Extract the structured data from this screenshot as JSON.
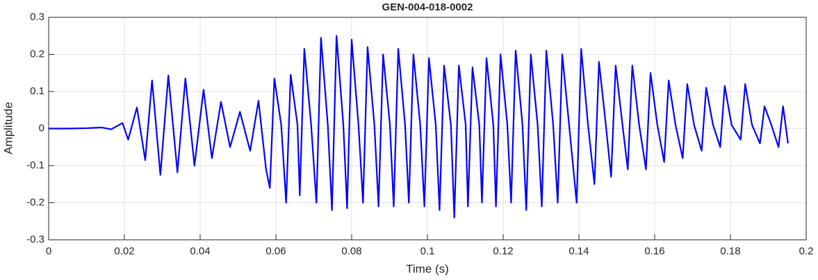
{
  "chart_data": {
    "type": "line",
    "title": "GEN-004-018-0002",
    "xlabel": "Time (s)",
    "ylabel": "Amplitude",
    "color": "#0000ff",
    "grid": true,
    "xlim": [
      0,
      0.2
    ],
    "xticks": [
      0,
      0.02,
      0.04,
      0.06,
      0.08,
      0.1,
      0.12,
      0.14,
      0.16,
      0.18,
      0.2
    ],
    "ylim": [
      -0.3,
      0.3
    ],
    "yticks": [
      -0.3,
      -0.2,
      -0.1,
      0,
      0.1,
      0.2,
      0.3
    ],
    "x": [
      0,
      0.005,
      0.01,
      0.014,
      0.0165,
      0.0195,
      0.021,
      0.0233,
      0.0255,
      0.0273,
      0.0295,
      0.0316,
      0.034,
      0.0361,
      0.0385,
      0.0409,
      0.0431,
      0.0455,
      0.0479,
      0.0505,
      0.0532,
      0.0554,
      0.0574,
      0.0584,
      0.0596,
      0.0614,
      0.0627,
      0.0639,
      0.0657,
      0.0663,
      0.0675,
      0.0693,
      0.0707,
      0.0719,
      0.0737,
      0.0748,
      0.076,
      0.0778,
      0.0788,
      0.08,
      0.0818,
      0.083,
      0.0842,
      0.086,
      0.0871,
      0.0883,
      0.0901,
      0.0911,
      0.0923,
      0.0941,
      0.0951,
      0.0963,
      0.0981,
      0.0992,
      0.1004,
      0.1022,
      0.1032,
      0.1044,
      0.1062,
      0.1071,
      0.1083,
      0.1101,
      0.1107,
      0.1119,
      0.1137,
      0.1144,
      0.1156,
      0.1174,
      0.1181,
      0.1193,
      0.1211,
      0.1221,
      0.1233,
      0.1251,
      0.1261,
      0.1273,
      0.1291,
      0.1302,
      0.1314,
      0.1332,
      0.1344,
      0.1356,
      0.1374,
      0.1394,
      0.1406,
      0.1424,
      0.1441,
      0.1453,
      0.1471,
      0.1485,
      0.1497,
      0.1515,
      0.1529,
      0.1541,
      0.1559,
      0.1577,
      0.1589,
      0.1607,
      0.1625,
      0.1637,
      0.1655,
      0.1674,
      0.1686,
      0.1704,
      0.1724,
      0.1736,
      0.1754,
      0.1773,
      0.1785,
      0.1803,
      0.1827,
      0.1839,
      0.1857,
      0.1878,
      0.189,
      0.1908,
      0.1927,
      0.1939,
      0.1952
    ],
    "values": [
      0,
      0,
      0.001,
      0.003,
      -0.002,
      0.015,
      -0.03,
      0.057,
      -0.085,
      0.13,
      -0.125,
      0.143,
      -0.118,
      0.135,
      -0.1,
      0.105,
      -0.08,
      0.072,
      -0.05,
      0.045,
      -0.06,
      0.075,
      -0.11,
      -0.16,
      0.135,
      0.01,
      -0.2,
      0.145,
      0.01,
      -0.18,
      0.215,
      0.01,
      -0.2,
      0.245,
      0.01,
      -0.22,
      0.25,
      0.01,
      -0.215,
      0.24,
      0.01,
      -0.2,
      0.22,
      0.01,
      -0.21,
      0.2,
      0.01,
      -0.21,
      0.215,
      0.01,
      -0.2,
      0.2,
      0.01,
      -0.21,
      0.19,
      0.01,
      -0.22,
      0.17,
      0.01,
      -0.24,
      0.17,
      0.01,
      -0.21,
      0.165,
      0.01,
      -0.2,
      0.19,
      0.01,
      -0.21,
      0.2,
      0.01,
      -0.2,
      0.21,
      0.01,
      -0.22,
      0.2,
      0.01,
      -0.21,
      0.21,
      0.01,
      -0.2,
      0.2,
      0.01,
      -0.2,
      0.215,
      0.01,
      -0.15,
      0.18,
      0.01,
      -0.13,
      0.17,
      0.01,
      -0.11,
      0.17,
      0.01,
      -0.11,
      0.15,
      0.01,
      -0.09,
      0.13,
      0.01,
      -0.08,
      0.12,
      0.01,
      -0.06,
      0.11,
      0.01,
      -0.05,
      0.115,
      0.01,
      -0.03,
      0.12,
      0.01,
      -0.04,
      0.06,
      0.01,
      -0.05,
      0.06,
      -0.04
    ]
  }
}
